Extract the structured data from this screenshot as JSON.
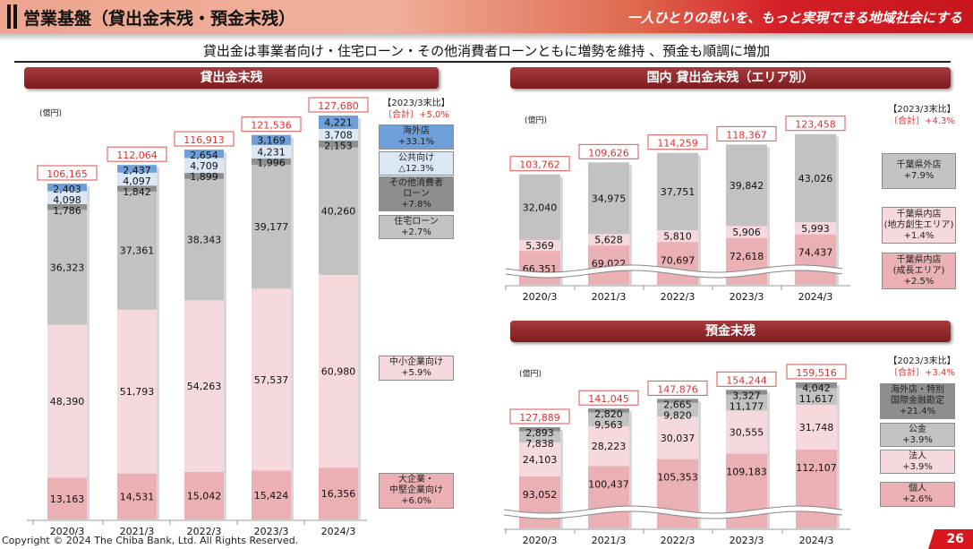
{
  "header": {
    "title": "営業基盤（貸出金末残・預金末残）",
    "slogan": "一人ひとりの思いを、もっと実現できる地域社会にする"
  },
  "subtitle": "貸出金は事業者向け・住宅ローン・その他消費者ローンともに増勢を維持 、預金も順調に増加",
  "footer": {
    "copyright": "Copyright © 2024 The Chiba Bank, Ltd. All Rights Reserved.",
    "page": "26"
  },
  "chart_data": [
    {
      "type": "bar",
      "stacked": true,
      "title": "貸出金末残",
      "unit": "(億円)",
      "categories": [
        "2020/3",
        "2021/3",
        "2022/3",
        "2023/3",
        "2024/3"
      ],
      "totals": [
        "106,165",
        "112,064",
        "116,913",
        "121,536",
        "127,680"
      ],
      "comparison": {
        "label": "【2023/3末比】",
        "total": "〔合計〕+5.0%"
      },
      "series": [
        {
          "name": "大企業・中堅企業向け",
          "change": "+6.0%",
          "color": "#eab0b3",
          "values": [
            13163,
            14531,
            15042,
            15424,
            16356
          ]
        },
        {
          "name": "中小企業向け",
          "change": "+5.9%",
          "color": "#f6d9dc",
          "values": [
            48390,
            51793,
            54263,
            57537,
            60980
          ]
        },
        {
          "name": "住宅ローン",
          "change": "+2.7%",
          "color": "#c2c2c2",
          "values": [
            36323,
            37361,
            38343,
            39177,
            40260
          ]
        },
        {
          "name": "その他消費者ローン",
          "change": "+7.8%",
          "color": "#8e8e8e",
          "values": [
            1786,
            1842,
            1899,
            1996,
            2153
          ]
        },
        {
          "name": "公共向け",
          "change": "△12.3%",
          "color": "#dbe7f5",
          "values": [
            4098,
            4097,
            4709,
            4231,
            3708
          ]
        },
        {
          "name": "海外店",
          "change": "+33.1%",
          "color": "#6e9fd9",
          "values": [
            2403,
            2437,
            2654,
            3169,
            4221
          ]
        }
      ]
    },
    {
      "type": "bar",
      "stacked": true,
      "title": "国内 貸出金末残（エリア別）",
      "unit": "(億円)",
      "axis_break": true,
      "categories": [
        "2020/3",
        "2021/3",
        "2022/3",
        "2023/3",
        "2024/3"
      ],
      "totals": [
        "103,762",
        "109,626",
        "114,259",
        "118,367",
        "123,458"
      ],
      "comparison": {
        "label": "【2023/3末比】",
        "total": "〔合計〕+4.3%"
      },
      "series": [
        {
          "name": "千葉県内店(成長エリア)",
          "change": "+2.5%",
          "color": "#eab0b3",
          "values": [
            66351,
            69022,
            70697,
            72618,
            74437
          ]
        },
        {
          "name": "千葉県内店(地方創生エリア)",
          "change": "+1.4%",
          "color": "#f6d9dc",
          "values": [
            5369,
            5628,
            5810,
            5906,
            5993
          ]
        },
        {
          "name": "千葉県外店",
          "change": "+7.9%",
          "color": "#c2c2c2",
          "values": [
            32040,
            34975,
            37751,
            39842,
            43026
          ]
        }
      ]
    },
    {
      "type": "bar",
      "stacked": true,
      "title": "預金末残",
      "unit": "(億円)",
      "axis_break": true,
      "categories": [
        "2020/3",
        "2021/3",
        "2022/3",
        "2023/3",
        "2024/3"
      ],
      "totals": [
        "127,889",
        "141,045",
        "147,876",
        "154,244",
        "159,516"
      ],
      "comparison": {
        "label": "【2023/3末比】",
        "total": "〔合計〕+3.4%"
      },
      "series": [
        {
          "name": "個人",
          "change": "+2.6%",
          "color": "#eab0b3",
          "values": [
            93052,
            100437,
            105353,
            109183,
            112107
          ]
        },
        {
          "name": "法人",
          "change": "+3.9%",
          "color": "#f6d9dc",
          "values": [
            24103,
            28223,
            30037,
            30555,
            31748
          ]
        },
        {
          "name": "公金",
          "change": "+3.9%",
          "color": "#c2c2c2",
          "values": [
            7838,
            9563,
            9820,
            11177,
            11617
          ]
        },
        {
          "name": "海外店・特別国際金融勘定",
          "change": "+21.4%",
          "color": "#8e8e8e",
          "values": [
            2893,
            2820,
            2665,
            3327,
            4042
          ]
        }
      ]
    }
  ]
}
